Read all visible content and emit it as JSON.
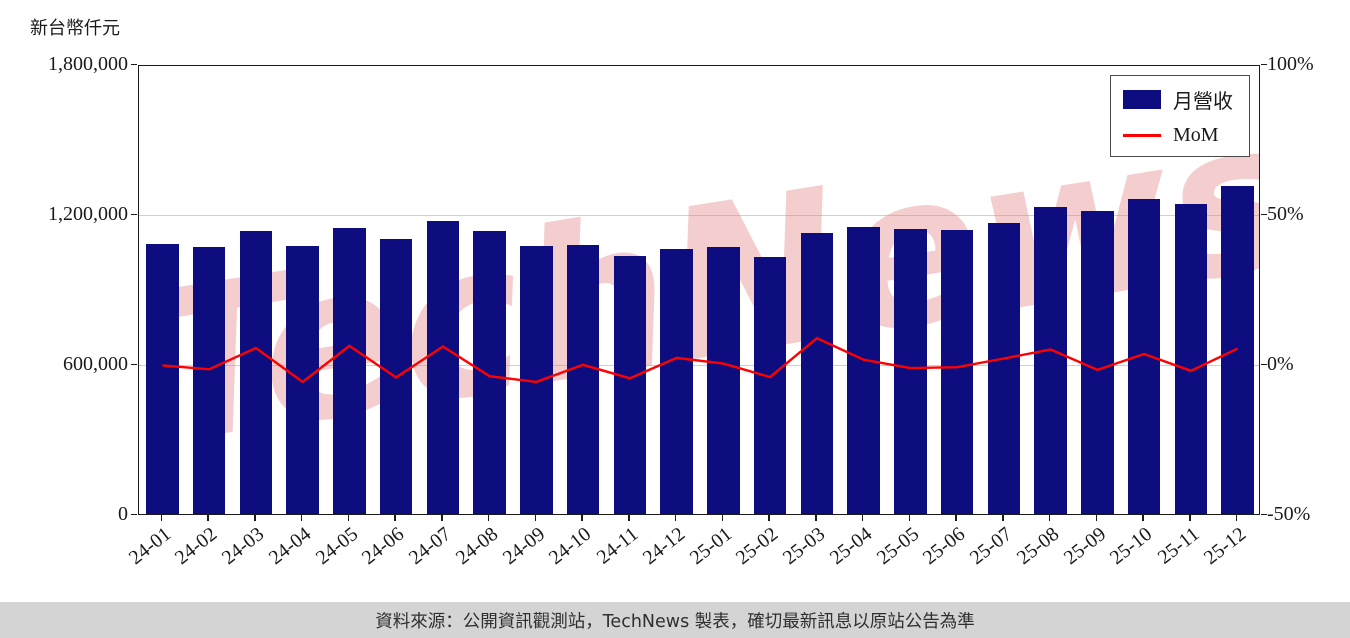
{
  "chart_data": {
    "type": "bar",
    "title": "",
    "ylabel_left": "新台幣仟元",
    "watermark": "TechNews",
    "categories": [
      "24-01",
      "24-02",
      "24-03",
      "24-04",
      "24-05",
      "24-06",
      "24-07",
      "24-08",
      "24-09",
      "24-10",
      "24-11",
      "24-12",
      "25-01",
      "25-02",
      "25-03",
      "25-04",
      "25-05",
      "25-06",
      "25-07",
      "25-08",
      "25-09",
      "25-10",
      "25-11",
      "25-12"
    ],
    "series": [
      {
        "name": "月營收",
        "type": "bar",
        "color": "#0d0d80",
        "values": [
          1080000,
          1068000,
          1132000,
          1072000,
          1144000,
          1100000,
          1172000,
          1132000,
          1072000,
          1076000,
          1032000,
          1060000,
          1068000,
          1028000,
          1124000,
          1148000,
          1140000,
          1136000,
          1164000,
          1228000,
          1212000,
          1260000,
          1240000,
          1312000
        ]
      },
      {
        "name": "MoM",
        "type": "line",
        "color": "#ff0000",
        "values": [
          0.2,
          -1.1,
          6.0,
          -5.3,
          6.7,
          -3.8,
          6.5,
          -3.4,
          -5.3,
          0.4,
          -4.1,
          2.7,
          0.8,
          -3.7,
          9.3,
          2.1,
          -0.7,
          -0.4,
          2.5,
          5.5,
          -1.3,
          4.0,
          -1.6,
          5.8
        ]
      }
    ],
    "left_axis": {
      "min": 0,
      "max": 1800000,
      "tick_labels": [
        "1,800,000",
        "1,200,000",
        "600,000",
        "0"
      ]
    },
    "right_axis": {
      "min": -50,
      "max": 100,
      "tick_labels": [
        "100%",
        "50%",
        "0%",
        "-50%"
      ]
    },
    "legend_position": "top-right",
    "grid": "horizontal"
  },
  "footer": {
    "text": "資料來源：公開資訊觀測站，TechNews 製表，確切最新訊息以原站公告為準"
  }
}
